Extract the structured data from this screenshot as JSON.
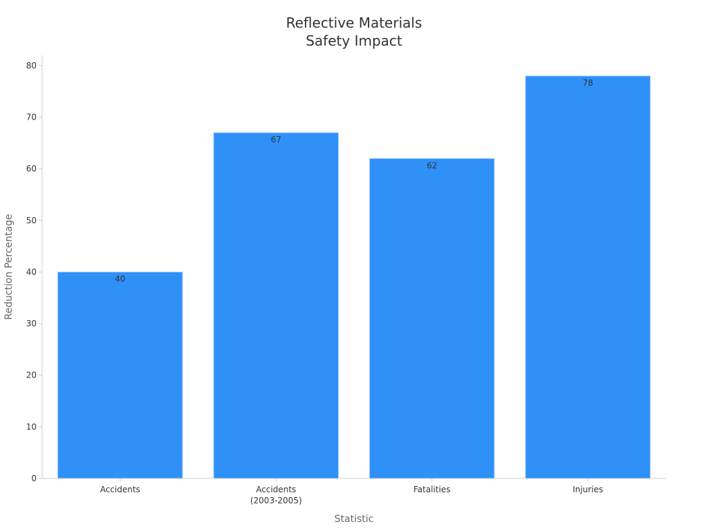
{
  "chart_data": {
    "type": "bar",
    "title": [
      "Reflective Materials",
      "Safety Impact"
    ],
    "xlabel": "Statistic",
    "ylabel": "Reduction Percentage",
    "categories": [
      [
        "Accidents"
      ],
      [
        "Accidents",
        "(2003-2005)"
      ],
      [
        "Fatalities"
      ],
      [
        "Injuries"
      ]
    ],
    "values": [
      40,
      67,
      62,
      78
    ],
    "data_labels": [
      "40",
      "67",
      "62",
      "78"
    ],
    "ylim": [
      0,
      82
    ],
    "yticks": [
      0,
      10,
      20,
      30,
      40,
      50,
      60,
      70,
      80
    ],
    "grid": false,
    "legend": "none",
    "colors": {
      "bar": "#2f91f8",
      "bar_edge": "#9ecbff",
      "axis": "#cccccc",
      "text": "#333333",
      "axis_label": "#666666"
    }
  }
}
